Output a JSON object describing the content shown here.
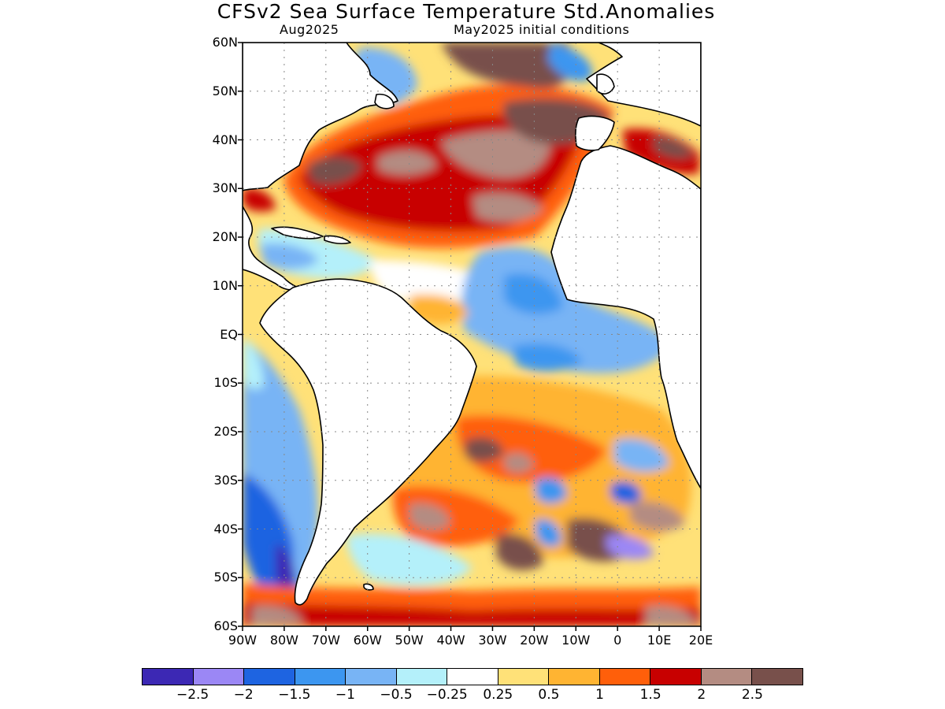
{
  "header": {
    "title": "CFSv2 Sea Surface Temperature Std.Anomalies",
    "valid_month": "Aug2025",
    "init_conditions": "May2025 initial conditions"
  },
  "map": {
    "lat_labels": [
      "60N",
      "50N",
      "40N",
      "30N",
      "20N",
      "10N",
      "EQ",
      "10S",
      "20S",
      "30S",
      "40S",
      "50S",
      "60S"
    ],
    "lon_labels": [
      "90W",
      "80W",
      "70W",
      "60W",
      "50W",
      "40W",
      "30W",
      "20W",
      "10W",
      "0",
      "10E",
      "20E"
    ],
    "land_color": "#ffffff",
    "coast_color": "#000000",
    "grid": "dotted"
  },
  "legend": {
    "colors": [
      "#3c28b4",
      "#9b87f5",
      "#1e64e1",
      "#3c96f0",
      "#78b4f5",
      "#b4f0fa",
      "#ffffff",
      "#ffe178",
      "#ffb432",
      "#ff5f0a",
      "#c80000",
      "#b48c82",
      "#78504b"
    ],
    "labels": [
      "−2.5",
      "−2",
      "−1.5",
      "−1",
      "−0.5",
      "−0.25",
      "0.25",
      "0.5",
      "1",
      "1.5",
      "2",
      "2.5"
    ]
  }
}
